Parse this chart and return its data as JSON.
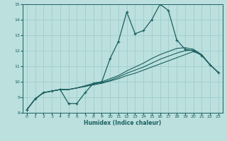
{
  "title": "",
  "xlabel": "Humidex (Indice chaleur)",
  "xlim": [
    -0.5,
    23.5
  ],
  "ylim": [
    8,
    15
  ],
  "yticks": [
    8,
    9,
    10,
    11,
    12,
    13,
    14,
    15
  ],
  "xticks": [
    0,
    1,
    2,
    3,
    4,
    5,
    6,
    7,
    8,
    9,
    10,
    11,
    12,
    13,
    14,
    15,
    16,
    17,
    18,
    19,
    20,
    21,
    22,
    23
  ],
  "bg_color": "#bce0de",
  "grid_color": "#9ecece",
  "line_color": "#1a6060",
  "main_y": [
    8.2,
    8.9,
    9.3,
    9.4,
    9.5,
    8.6,
    8.6,
    9.3,
    9.9,
    10.0,
    11.5,
    12.6,
    14.5,
    13.1,
    13.3,
    14.0,
    15.0,
    14.6,
    12.7,
    12.1,
    12.0,
    11.7,
    11.1,
    10.6
  ],
  "line2_y": [
    8.2,
    8.9,
    9.3,
    9.4,
    9.5,
    9.5,
    9.6,
    9.7,
    9.8,
    9.9,
    10.05,
    10.2,
    10.4,
    10.55,
    10.75,
    10.95,
    11.15,
    11.35,
    11.55,
    11.75,
    11.95,
    11.75,
    11.1,
    10.6
  ],
  "line3_y": [
    8.2,
    8.9,
    9.3,
    9.4,
    9.5,
    9.5,
    9.6,
    9.7,
    9.85,
    9.95,
    10.1,
    10.3,
    10.55,
    10.75,
    10.95,
    11.2,
    11.45,
    11.65,
    11.85,
    12.0,
    12.05,
    11.75,
    11.1,
    10.6
  ],
  "line4_y": [
    8.2,
    8.9,
    9.3,
    9.4,
    9.5,
    9.5,
    9.6,
    9.75,
    9.9,
    10.0,
    10.2,
    10.4,
    10.7,
    10.95,
    11.2,
    11.5,
    11.75,
    11.95,
    12.15,
    12.2,
    12.1,
    11.75,
    11.1,
    10.6
  ]
}
